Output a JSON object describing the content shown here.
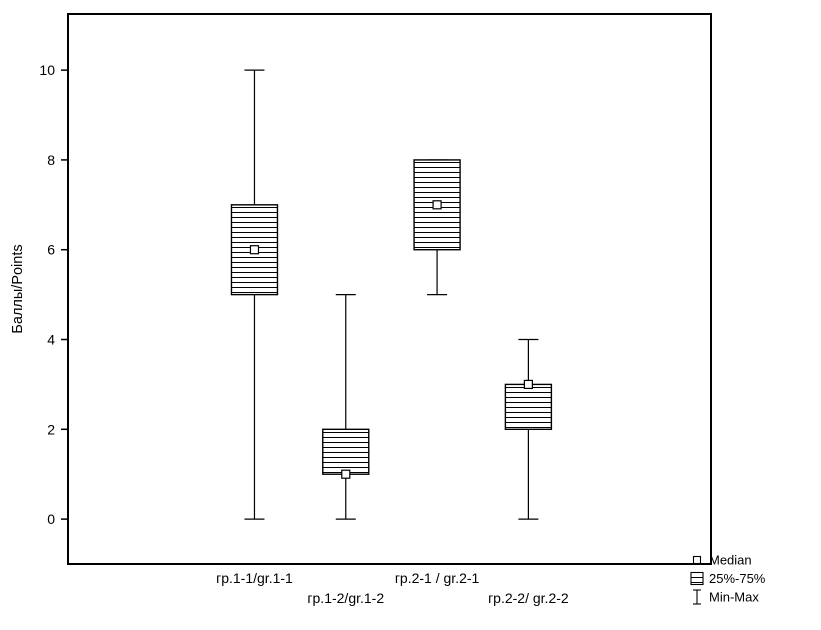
{
  "chart_data": {
    "type": "boxplot",
    "title": "",
    "xlabel": "",
    "ylabel": "Баллы/Points",
    "ylim": [
      -1,
      11.25
    ],
    "yticks": [
      0,
      2,
      4,
      6,
      8,
      10
    ],
    "grid": false,
    "legend_position": "bottom-right-outside",
    "categories": [
      "гр.1-1/gr.1-1",
      "гр.1-2/gr.1-2",
      "гр.2-1 / gr.2-1",
      "гр.2-2/ gr.2-2"
    ],
    "series": [
      {
        "name": "гр.1-1/gr.1-1",
        "median": 6,
        "q1": 5,
        "q3": 7,
        "min": 0,
        "max": 10
      },
      {
        "name": "гр.1-2/gr.1-2",
        "median": 1,
        "q1": 1,
        "q3": 2,
        "min": 0,
        "max": 5
      },
      {
        "name": "гр.2-1 / gr.2-1",
        "median": 7,
        "q1": 6,
        "q3": 8,
        "min": 5,
        "max": 8
      },
      {
        "name": "гр.2-2/ gr.2-2",
        "median": 3,
        "q1": 2,
        "q3": 3,
        "min": 0,
        "max": 4
      }
    ],
    "legend": [
      {
        "label": "Median",
        "marker": "square"
      },
      {
        "label": "25%-75%",
        "marker": "hatched-box"
      },
      {
        "label": "Min-Max",
        "marker": "whisker"
      }
    ],
    "colors": {
      "stroke": "#000000",
      "fill": "#ffffff"
    }
  }
}
